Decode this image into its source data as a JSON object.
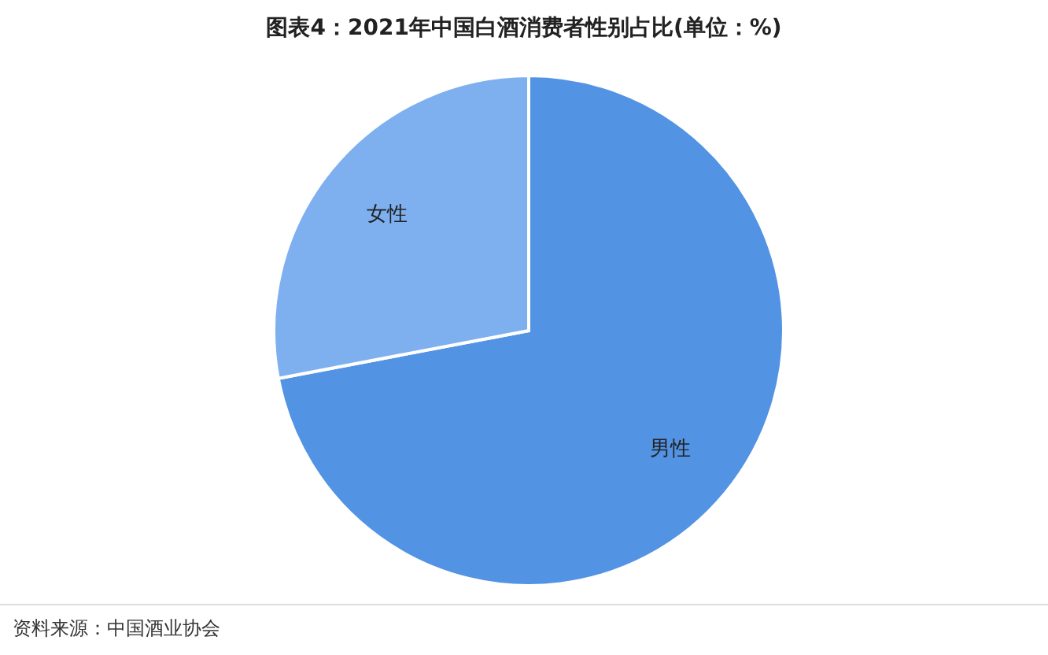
{
  "chart_data": {
    "type": "pie",
    "title": "图表4：2021年中国白酒消费者性别占比(单位：%)",
    "categories": [
      "男性",
      "女性"
    ],
    "values": [
      72,
      28
    ],
    "colors": [
      "#5293e3",
      "#7eb0f0"
    ],
    "annotations": [
      "资料来源：中国酒业协会"
    ]
  }
}
